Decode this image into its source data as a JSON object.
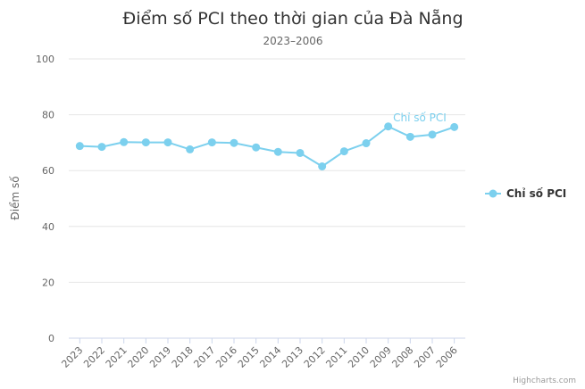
{
  "chart_data": {
    "type": "line",
    "title": "Điểm số PCI theo thời gian của Đà Nẵng",
    "subtitle": "2023–2006",
    "xlabel": "",
    "ylabel": "Điểm số",
    "ylim": [
      0,
      100
    ],
    "yticks": [
      0,
      20,
      40,
      60,
      80,
      100
    ],
    "grid": true,
    "legend": "right",
    "categories": [
      "2023",
      "2022",
      "2021",
      "2020",
      "2019",
      "2018",
      "2017",
      "2016",
      "2015",
      "2014",
      "2013",
      "2012",
      "2011",
      "2010",
      "2009",
      "2008",
      "2007",
      "2006"
    ],
    "series": [
      {
        "name": "Chỉ số PCI",
        "color": "#7cd0ee",
        "values": [
          68.8,
          68.5,
          70.2,
          70.1,
          70.1,
          67.6,
          70.1,
          69.9,
          68.3,
          66.7,
          66.3,
          61.5,
          66.9,
          69.8,
          75.8,
          72.1,
          72.9,
          75.6
        ]
      }
    ],
    "series_label": "Chỉ số PCI",
    "credits": "Highcharts.com"
  }
}
